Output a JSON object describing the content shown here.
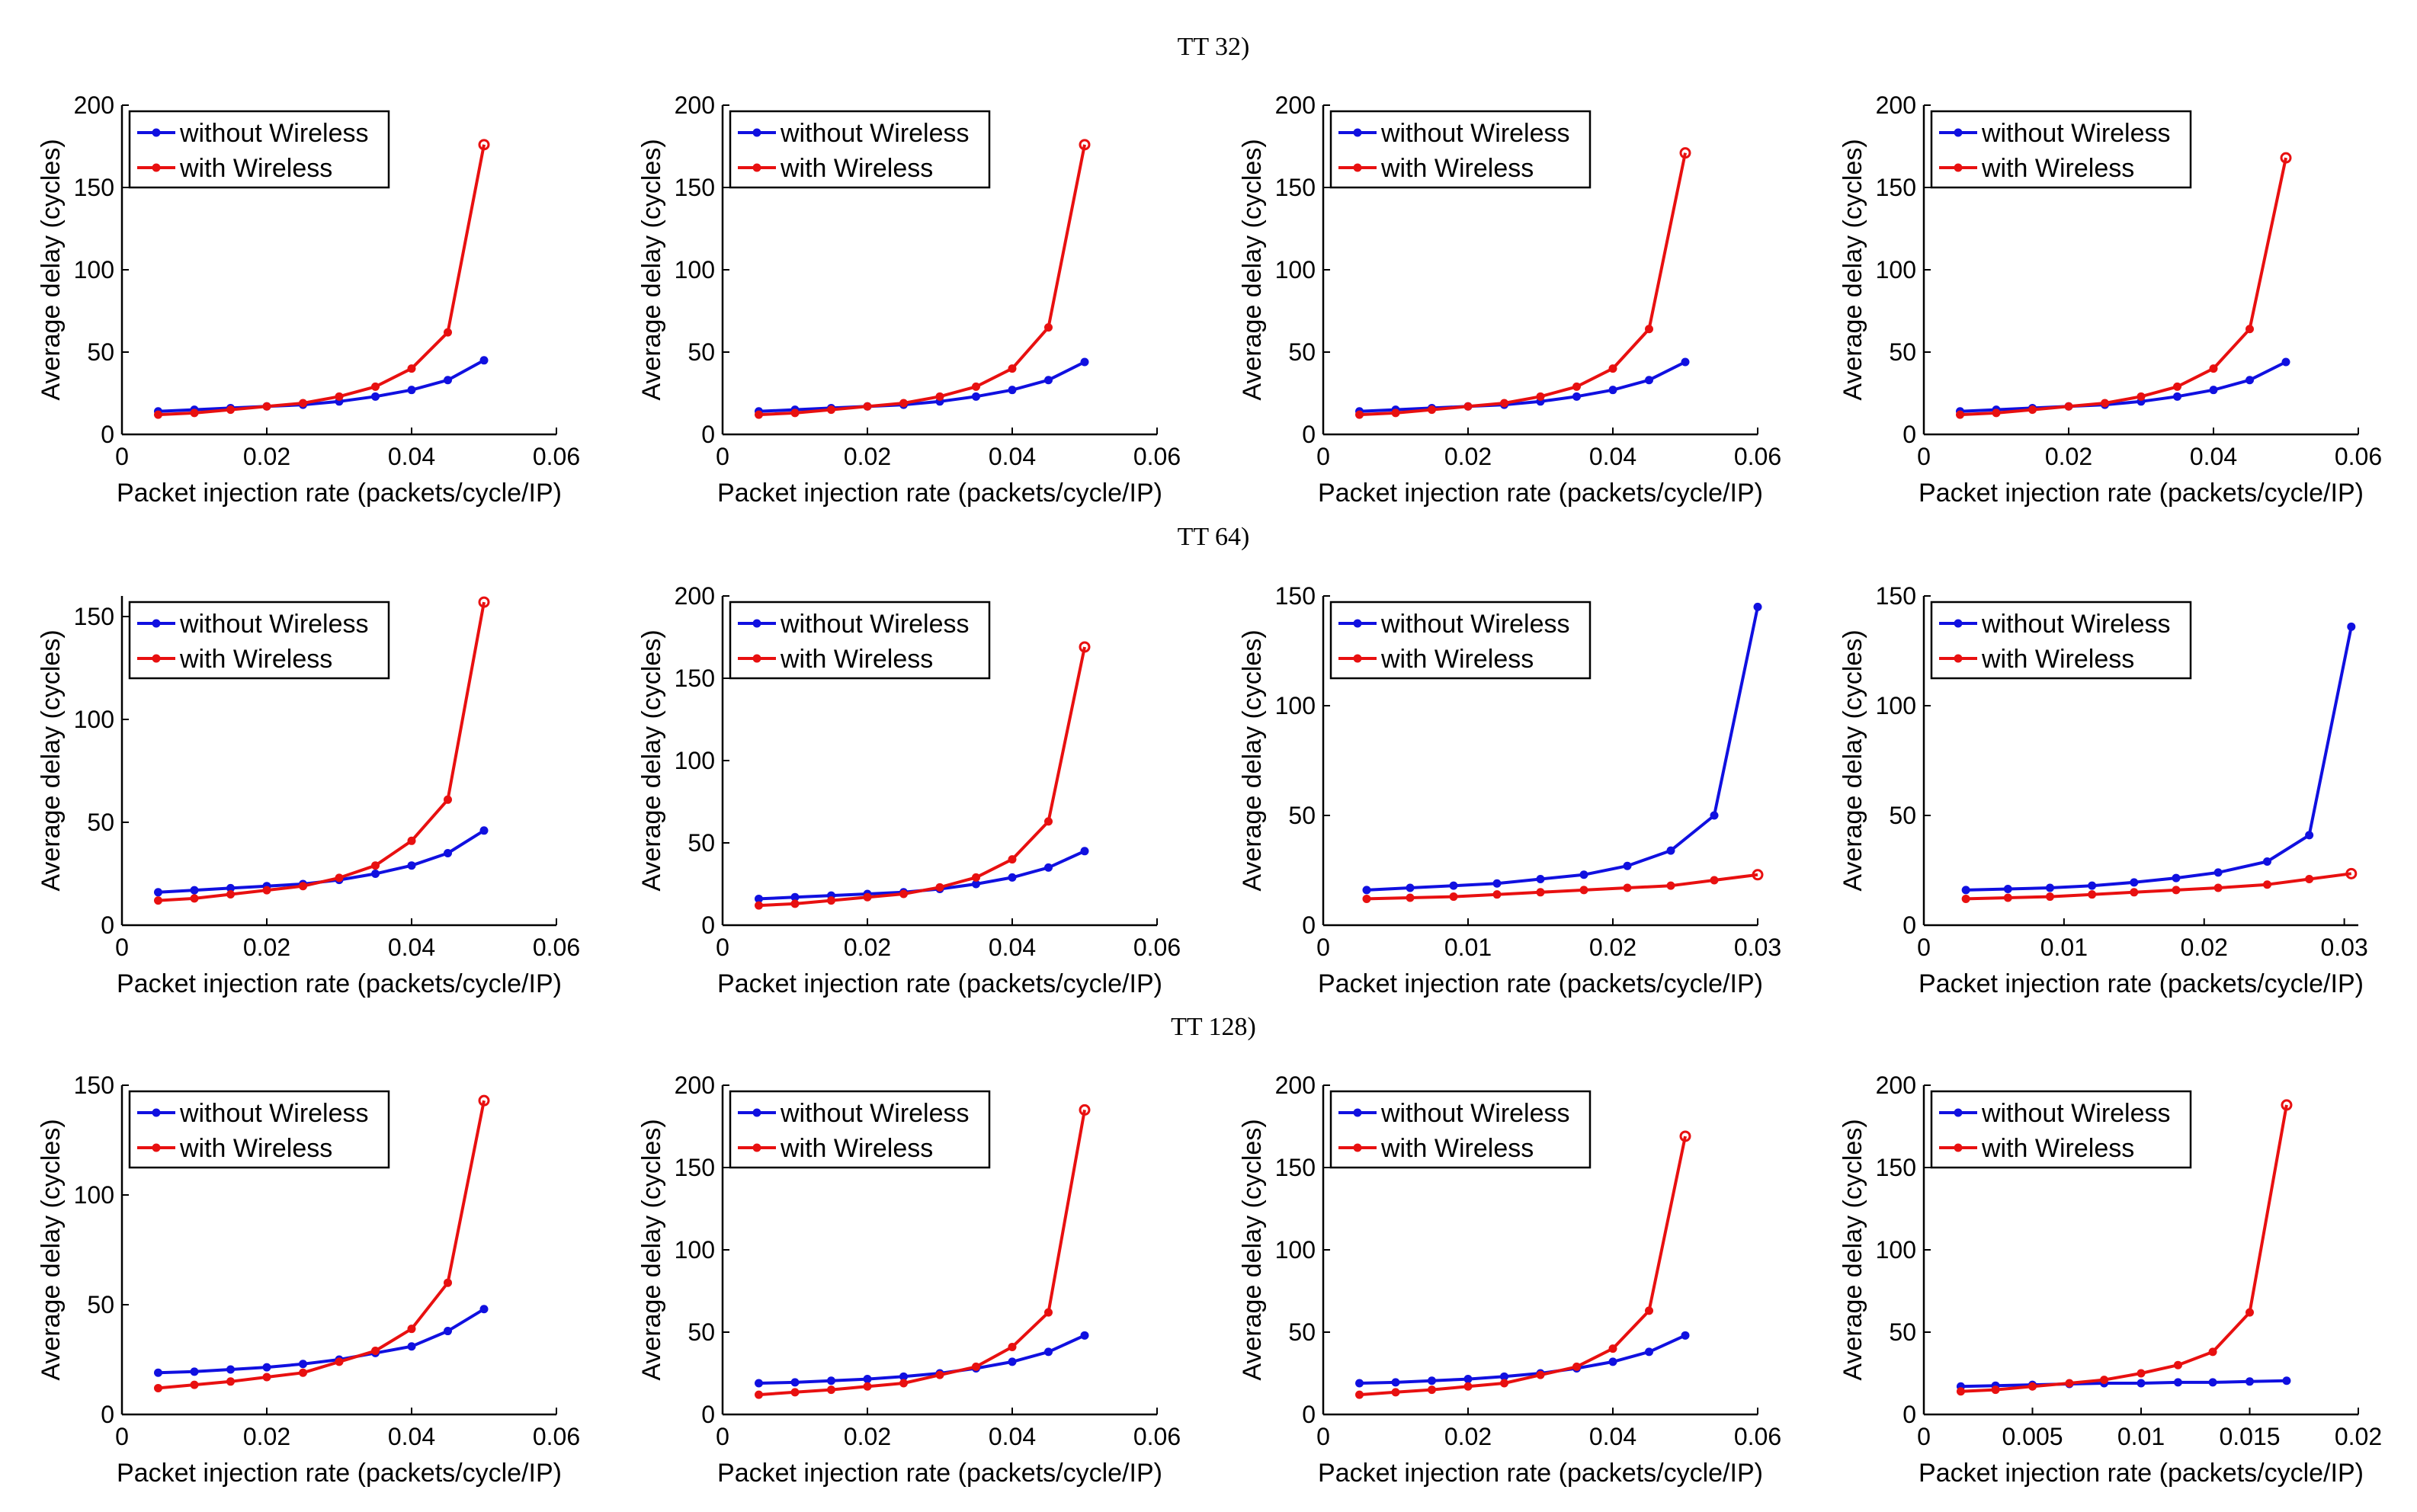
{
  "row_titles": [
    "TT 32)",
    "TT 64)",
    "TT 128)"
  ],
  "chart_data": [
    {
      "type": "line",
      "row": 0,
      "col": 0,
      "title": "",
      "xlabel": "Packet injection rate (packets/cycle/IP)",
      "ylabel": "Average delay (cycles)",
      "xlim": [
        0,
        0.06
      ],
      "xticks": [
        0,
        0.02,
        0.04,
        0.06
      ],
      "xtick_labels": [
        "0",
        "0.02",
        "0.04",
        "0.06"
      ],
      "ylim": [
        0,
        200
      ],
      "yticks": [
        0,
        50,
        100,
        150,
        200
      ],
      "legend": "top-left",
      "series": [
        {
          "name": "without Wireless",
          "color": "#1010e0",
          "x": [
            0.005,
            0.01,
            0.015,
            0.02,
            0.025,
            0.03,
            0.035,
            0.04,
            0.045,
            0.05
          ],
          "y": [
            14,
            15,
            16,
            17,
            18,
            20,
            23,
            27,
            33,
            45
          ]
        },
        {
          "name": "with Wireless",
          "color": "#e81010",
          "x": [
            0.005,
            0.01,
            0.015,
            0.02,
            0.025,
            0.03,
            0.035,
            0.04,
            0.045,
            0.05
          ],
          "y": [
            12,
            13,
            15,
            17,
            19,
            23,
            29,
            40,
            62,
            176
          ]
        }
      ]
    },
    {
      "type": "line",
      "row": 0,
      "col": 1,
      "title": "",
      "xlabel": "Packet injection rate (packets/cycle/IP)",
      "ylabel": "Average delay (cycles)",
      "xlim": [
        0,
        0.06
      ],
      "xticks": [
        0,
        0.02,
        0.04,
        0.06
      ],
      "xtick_labels": [
        "0",
        "0.02",
        "0.04",
        "0.06"
      ],
      "ylim": [
        0,
        200
      ],
      "yticks": [
        0,
        50,
        100,
        150,
        200
      ],
      "legend": "top-left",
      "series": [
        {
          "name": "without Wireless",
          "color": "#1010e0",
          "x": [
            0.005,
            0.01,
            0.015,
            0.02,
            0.025,
            0.03,
            0.035,
            0.04,
            0.045,
            0.05
          ],
          "y": [
            14,
            15,
            16,
            17,
            18,
            20,
            23,
            27,
            33,
            44
          ]
        },
        {
          "name": "with Wireless",
          "color": "#e81010",
          "x": [
            0.005,
            0.01,
            0.015,
            0.02,
            0.025,
            0.03,
            0.035,
            0.04,
            0.045,
            0.05
          ],
          "y": [
            12,
            13,
            15,
            17,
            19,
            23,
            29,
            40,
            65,
            176
          ]
        }
      ]
    },
    {
      "type": "line",
      "row": 0,
      "col": 2,
      "title": "",
      "xlabel": "Packet injection rate (packets/cycle/IP)",
      "ylabel": "Average delay (cycles)",
      "xlim": [
        0,
        0.06
      ],
      "xticks": [
        0,
        0.02,
        0.04,
        0.06
      ],
      "xtick_labels": [
        "0",
        "0.02",
        "0.04",
        "0.06"
      ],
      "ylim": [
        0,
        200
      ],
      "yticks": [
        0,
        50,
        100,
        150,
        200
      ],
      "legend": "top-left",
      "series": [
        {
          "name": "without Wireless",
          "color": "#1010e0",
          "x": [
            0.005,
            0.01,
            0.015,
            0.02,
            0.025,
            0.03,
            0.035,
            0.04,
            0.045,
            0.05
          ],
          "y": [
            14,
            15,
            16,
            17,
            18,
            20,
            23,
            27,
            33,
            44
          ]
        },
        {
          "name": "with Wireless",
          "color": "#e81010",
          "x": [
            0.005,
            0.01,
            0.015,
            0.02,
            0.025,
            0.03,
            0.035,
            0.04,
            0.045,
            0.05
          ],
          "y": [
            12,
            13,
            15,
            17,
            19,
            23,
            29,
            40,
            64,
            171
          ]
        }
      ]
    },
    {
      "type": "line",
      "row": 0,
      "col": 3,
      "title": "",
      "xlabel": "Packet injection rate (packets/cycle/IP)",
      "ylabel": "Average delay (cycles)",
      "xlim": [
        0,
        0.06
      ],
      "xticks": [
        0,
        0.02,
        0.04,
        0.06
      ],
      "xtick_labels": [
        "0",
        "0.02",
        "0.04",
        "0.06"
      ],
      "ylim": [
        0,
        200
      ],
      "yticks": [
        0,
        50,
        100,
        150,
        200
      ],
      "legend": "top-left",
      "series": [
        {
          "name": "without Wireless",
          "color": "#1010e0",
          "x": [
            0.005,
            0.01,
            0.015,
            0.02,
            0.025,
            0.03,
            0.035,
            0.04,
            0.045,
            0.05
          ],
          "y": [
            14,
            15,
            16,
            17,
            18,
            20,
            23,
            27,
            33,
            44
          ]
        },
        {
          "name": "with Wireless",
          "color": "#e81010",
          "x": [
            0.005,
            0.01,
            0.015,
            0.02,
            0.025,
            0.03,
            0.035,
            0.04,
            0.045,
            0.05
          ],
          "y": [
            12,
            13,
            15,
            17,
            19,
            23,
            29,
            40,
            64,
            168
          ]
        }
      ]
    },
    {
      "type": "line",
      "row": 1,
      "col": 0,
      "title": "",
      "xlabel": "Packet injection rate (packets/cycle/IP)",
      "ylabel": "Average delay (cycles)",
      "xlim": [
        0,
        0.06
      ],
      "xticks": [
        0,
        0.02,
        0.04,
        0.06
      ],
      "xtick_labels": [
        "0",
        "0.02",
        "0.04",
        "0.06"
      ],
      "ylim": [
        0,
        160
      ],
      "yticks": [
        0,
        50,
        100,
        150
      ],
      "legend": "top-left",
      "series": [
        {
          "name": "without Wireless",
          "color": "#1010e0",
          "x": [
            0.005,
            0.01,
            0.015,
            0.02,
            0.025,
            0.03,
            0.035,
            0.04,
            0.045,
            0.05
          ],
          "y": [
            16,
            17,
            18,
            19,
            20,
            22,
            25,
            29,
            35,
            46
          ]
        },
        {
          "name": "with Wireless",
          "color": "#e81010",
          "x": [
            0.005,
            0.01,
            0.015,
            0.02,
            0.025,
            0.03,
            0.035,
            0.04,
            0.045,
            0.05
          ],
          "y": [
            12,
            13,
            15,
            17,
            19,
            23,
            29,
            41,
            61,
            157
          ]
        }
      ]
    },
    {
      "type": "line",
      "row": 1,
      "col": 1,
      "title": "",
      "xlabel": "Packet injection rate (packets/cycle/IP)",
      "ylabel": "Average delay (cycles)",
      "xlim": [
        0,
        0.06
      ],
      "xticks": [
        0,
        0.02,
        0.04,
        0.06
      ],
      "xtick_labels": [
        "0",
        "0.02",
        "0.04",
        "0.06"
      ],
      "ylim": [
        0,
        200
      ],
      "yticks": [
        0,
        50,
        100,
        150,
        200
      ],
      "legend": "top-left",
      "series": [
        {
          "name": "without Wireless",
          "color": "#1010e0",
          "x": [
            0.005,
            0.01,
            0.015,
            0.02,
            0.025,
            0.03,
            0.035,
            0.04,
            0.045,
            0.05
          ],
          "y": [
            16,
            17,
            18,
            19,
            20,
            22,
            25,
            29,
            35,
            45
          ]
        },
        {
          "name": "with Wireless",
          "color": "#e81010",
          "x": [
            0.005,
            0.01,
            0.015,
            0.02,
            0.025,
            0.03,
            0.035,
            0.04,
            0.045,
            0.05
          ],
          "y": [
            12,
            13,
            15,
            17,
            19,
            23,
            29,
            40,
            63,
            169
          ]
        }
      ]
    },
    {
      "type": "line",
      "row": 1,
      "col": 2,
      "title": "",
      "xlabel": "Packet injection rate (packets/cycle/IP)",
      "ylabel": "Average delay (cycles)",
      "xlim": [
        0,
        0.03
      ],
      "xticks": [
        0,
        0.01,
        0.02,
        0.03
      ],
      "xtick_labels": [
        "0",
        "0.01",
        "0.02",
        "0.03"
      ],
      "ylim": [
        0,
        150
      ],
      "yticks": [
        0,
        50,
        100,
        150
      ],
      "legend": "top-left",
      "series": [
        {
          "name": "without Wireless",
          "color": "#1010e0",
          "x": [
            0.003,
            0.006,
            0.009,
            0.012,
            0.015,
            0.018,
            0.021,
            0.024,
            0.027,
            0.03
          ],
          "y": [
            16,
            17,
            18,
            19,
            21,
            23,
            27,
            34,
            50,
            145
          ]
        },
        {
          "name": "with Wireless",
          "color": "#e81010",
          "x": [
            0.003,
            0.006,
            0.009,
            0.012,
            0.015,
            0.018,
            0.021,
            0.024,
            0.027,
            0.03
          ],
          "y": [
            12,
            12.5,
            13,
            14,
            15,
            16,
            17,
            18,
            20.5,
            23
          ]
        }
      ]
    },
    {
      "type": "line",
      "row": 1,
      "col": 3,
      "title": "",
      "xlabel": "Packet injection rate (packets/cycle/IP)",
      "ylabel": "Average delay (cycles)",
      "xlim": [
        0,
        0.031
      ],
      "xticks": [
        0,
        0.01,
        0.02,
        0.03
      ],
      "xtick_labels": [
        "0",
        "0.01",
        "0.02",
        "0.03"
      ],
      "ylim": [
        0,
        150
      ],
      "yticks": [
        0,
        50,
        100,
        150
      ],
      "legend": "top-left",
      "series": [
        {
          "name": "without Wireless",
          "color": "#1010e0",
          "x": [
            0.003,
            0.006,
            0.009,
            0.012,
            0.015,
            0.018,
            0.021,
            0.0245,
            0.0275,
            0.0305
          ],
          "y": [
            16,
            16.5,
            17,
            18,
            19.5,
            21.5,
            24,
            29,
            41,
            136
          ]
        },
        {
          "name": "with Wireless",
          "color": "#e81010",
          "x": [
            0.003,
            0.006,
            0.009,
            0.012,
            0.015,
            0.018,
            0.021,
            0.0245,
            0.0275,
            0.0305
          ],
          "y": [
            12,
            12.5,
            13,
            14,
            15,
            16,
            17,
            18.5,
            21,
            23.5
          ]
        }
      ]
    },
    {
      "type": "line",
      "row": 2,
      "col": 0,
      "title": "",
      "xlabel": "Packet injection rate (packets/cycle/IP)",
      "ylabel": "Average delay (cycles)",
      "xlim": [
        0,
        0.06
      ],
      "xticks": [
        0,
        0.02,
        0.04,
        0.06
      ],
      "xtick_labels": [
        "0",
        "0.02",
        "0.04",
        "0.06"
      ],
      "ylim": [
        0,
        150
      ],
      "yticks": [
        0,
        50,
        100,
        150
      ],
      "legend": "top-left",
      "series": [
        {
          "name": "without Wireless",
          "color": "#1010e0",
          "x": [
            0.005,
            0.01,
            0.015,
            0.02,
            0.025,
            0.03,
            0.035,
            0.04,
            0.045,
            0.05
          ],
          "y": [
            19,
            19.5,
            20.5,
            21.5,
            23,
            25,
            28,
            31,
            38,
            48
          ]
        },
        {
          "name": "with Wireless",
          "color": "#e81010",
          "x": [
            0.005,
            0.01,
            0.015,
            0.02,
            0.025,
            0.03,
            0.035,
            0.04,
            0.045,
            0.05
          ],
          "y": [
            12,
            13.5,
            15,
            17,
            19,
            24,
            29,
            39,
            60,
            143
          ]
        }
      ]
    },
    {
      "type": "line",
      "row": 2,
      "col": 1,
      "title": "",
      "xlabel": "Packet injection rate (packets/cycle/IP)",
      "ylabel": "Average delay (cycles)",
      "xlim": [
        0,
        0.06
      ],
      "xticks": [
        0,
        0.02,
        0.04,
        0.06
      ],
      "xtick_labels": [
        "0",
        "0.02",
        "0.04",
        "0.06"
      ],
      "ylim": [
        0,
        200
      ],
      "yticks": [
        0,
        50,
        100,
        150,
        200
      ],
      "legend": "top-left",
      "series": [
        {
          "name": "without Wireless",
          "color": "#1010e0",
          "x": [
            0.005,
            0.01,
            0.015,
            0.02,
            0.025,
            0.03,
            0.035,
            0.04,
            0.045,
            0.05
          ],
          "y": [
            19,
            19.5,
            20.5,
            21.5,
            23,
            25,
            28,
            32,
            38,
            48
          ]
        },
        {
          "name": "with Wireless",
          "color": "#e81010",
          "x": [
            0.005,
            0.01,
            0.015,
            0.02,
            0.025,
            0.03,
            0.035,
            0.04,
            0.045,
            0.05
          ],
          "y": [
            12,
            13.5,
            15,
            17,
            19,
            24,
            29,
            41,
            62,
            185
          ]
        }
      ]
    },
    {
      "type": "line",
      "row": 2,
      "col": 2,
      "title": "",
      "xlabel": "Packet injection rate (packets/cycle/IP)",
      "ylabel": "Average delay (cycles)",
      "xlim": [
        0,
        0.06
      ],
      "xticks": [
        0,
        0.02,
        0.04,
        0.06
      ],
      "xtick_labels": [
        "0",
        "0.02",
        "0.04",
        "0.06"
      ],
      "ylim": [
        0,
        200
      ],
      "yticks": [
        0,
        50,
        100,
        150,
        200
      ],
      "legend": "top-left",
      "series": [
        {
          "name": "without Wireless",
          "color": "#1010e0",
          "x": [
            0.005,
            0.01,
            0.015,
            0.02,
            0.025,
            0.03,
            0.035,
            0.04,
            0.045,
            0.05
          ],
          "y": [
            19,
            19.5,
            20.5,
            21.5,
            23,
            25,
            28,
            32,
            38,
            48
          ]
        },
        {
          "name": "with Wireless",
          "color": "#e81010",
          "x": [
            0.005,
            0.01,
            0.015,
            0.02,
            0.025,
            0.03,
            0.035,
            0.04,
            0.045,
            0.05
          ],
          "y": [
            12,
            13.5,
            15,
            17,
            19,
            24,
            29,
            40,
            63,
            169
          ]
        }
      ]
    },
    {
      "type": "line",
      "row": 2,
      "col": 3,
      "title": "",
      "xlabel": "Packet injection rate (packets/cycle/IP)",
      "ylabel": "Average delay (cycles)",
      "xlim": [
        0,
        0.02
      ],
      "xticks": [
        0,
        0.005,
        0.01,
        0.015,
        0.02
      ],
      "xtick_labels": [
        "0",
        "0.005",
        "0.01",
        "0.015",
        "0.02"
      ],
      "ylim": [
        0,
        200
      ],
      "yticks": [
        0,
        50,
        100,
        150,
        200
      ],
      "legend": "top-left",
      "series": [
        {
          "name": "without Wireless",
          "color": "#1010e0",
          "x": [
            0.0017,
            0.0033,
            0.005,
            0.0067,
            0.0083,
            0.01,
            0.0117,
            0.0133,
            0.015,
            0.0167
          ],
          "y": [
            17,
            17.5,
            18,
            18.5,
            19,
            19,
            19.5,
            19.5,
            20,
            20.5
          ]
        },
        {
          "name": "with Wireless",
          "color": "#e81010",
          "x": [
            0.0017,
            0.0033,
            0.005,
            0.0067,
            0.0083,
            0.01,
            0.0117,
            0.0133,
            0.015,
            0.0167
          ],
          "y": [
            14,
            15,
            17,
            19,
            21,
            25,
            30,
            38,
            62,
            188
          ]
        }
      ]
    }
  ]
}
